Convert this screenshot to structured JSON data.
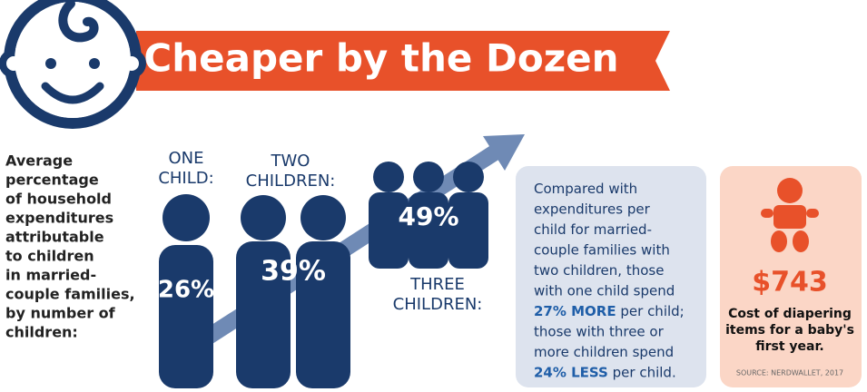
{
  "header": {
    "title": "Cheaper by the Dozen"
  },
  "description": {
    "lines": [
      "Average",
      "percentage",
      "of household",
      "expenditures",
      "attributable",
      "to children",
      "in married-",
      "couple families,",
      "by number of",
      "children:"
    ]
  },
  "groups": [
    {
      "label_lines": [
        "ONE",
        "CHILD:"
      ],
      "percent": "26%"
    },
    {
      "label_lines": [
        "TWO",
        "CHILDREN:"
      ],
      "percent": "39%"
    },
    {
      "label_lines": [
        "THREE",
        "CHILDREN:"
      ],
      "percent": "49%"
    }
  ],
  "comparison": {
    "lines": [
      [
        "Compared with"
      ],
      [
        "expenditures per"
      ],
      [
        "child for married-"
      ],
      [
        "couple families with"
      ],
      [
        "two children, those"
      ],
      [
        "with one child spend"
      ],
      [
        "27% MORE",
        " per child;"
      ],
      [
        "those with three or"
      ],
      [
        "more children spend"
      ],
      [
        "24% LESS",
        " per child."
      ]
    ]
  },
  "diapers": {
    "amount": "$743",
    "caption_lines": [
      "Cost of diapering",
      "items for a baby's",
      "first year."
    ],
    "source": "SOURCE: NERDWALLET, 2017"
  }
}
